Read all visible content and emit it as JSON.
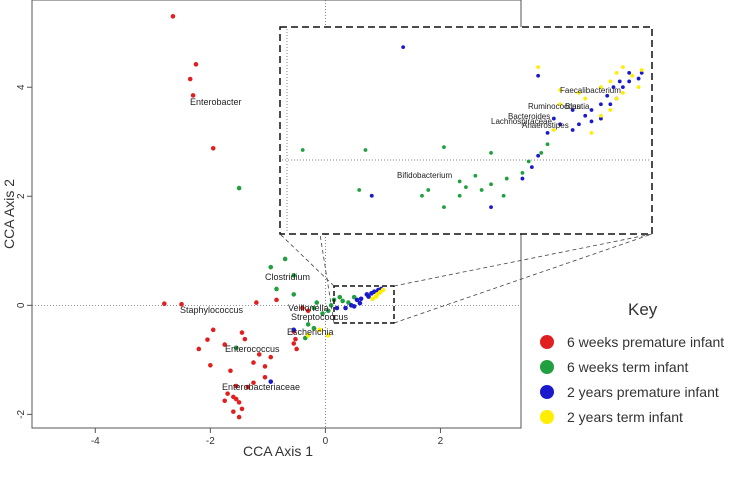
{
  "chart_data": {
    "type": "scatter",
    "xlabel": "CCA Axis 1",
    "ylabel": "CCA Axis 2",
    "xlim": [
      -5.1,
      3.4
    ],
    "ylim": [
      -2.25,
      5.6
    ],
    "x_ticks": [
      -4,
      -2,
      0,
      2
    ],
    "y_ticks": [
      -2,
      0,
      2,
      4
    ],
    "zero_lines": true,
    "legend_title": "Key",
    "legend_position": "right",
    "series": [
      {
        "name": "6 weeks premature infant",
        "color": "#e02020",
        "points": [
          [
            -2.65,
            5.3
          ],
          [
            -2.25,
            4.42
          ],
          [
            -2.35,
            4.15
          ],
          [
            -2.3,
            3.85
          ],
          [
            -1.95,
            2.88
          ],
          [
            -2.8,
            0.03
          ],
          [
            -2.5,
            0.02
          ],
          [
            -1.2,
            0.05
          ],
          [
            -0.85,
            0.1
          ],
          [
            -1.95,
            -0.45
          ],
          [
            -1.45,
            -0.5
          ],
          [
            -1.4,
            -0.62
          ],
          [
            -2.05,
            -0.63
          ],
          [
            -1.75,
            -0.72
          ],
          [
            -2.2,
            -0.8
          ],
          [
            -1.55,
            -0.78
          ],
          [
            -1.15,
            -0.9
          ],
          [
            -0.95,
            -0.95
          ],
          [
            -1.25,
            -1.05
          ],
          [
            -1.05,
            -1.12
          ],
          [
            -1.65,
            -1.2
          ],
          [
            -2.0,
            -1.1
          ],
          [
            -1.05,
            -1.32
          ],
          [
            -1.25,
            -1.42
          ],
          [
            -1.35,
            -1.5
          ],
          [
            -1.55,
            -1.48
          ],
          [
            -1.7,
            -1.62
          ],
          [
            -1.6,
            -1.68
          ],
          [
            -1.55,
            -1.72
          ],
          [
            -1.75,
            -1.75
          ],
          [
            -1.5,
            -1.78
          ],
          [
            -1.45,
            -1.9
          ],
          [
            -1.6,
            -1.95
          ],
          [
            -1.5,
            -2.05
          ],
          [
            -0.55,
            -0.48
          ],
          [
            -0.52,
            -0.62
          ],
          [
            -0.55,
            -0.7
          ],
          [
            -0.5,
            -0.8
          ],
          [
            -0.4,
            -0.05
          ],
          [
            -0.3,
            -0.1
          ]
        ]
      },
      {
        "name": "6 weeks term infant",
        "color": "#20a040",
        "points": [
          [
            -1.5,
            2.15
          ],
          [
            -0.95,
            0.7
          ],
          [
            -0.7,
            0.85
          ],
          [
            -0.55,
            0.55
          ],
          [
            -0.85,
            0.3
          ],
          [
            -0.55,
            0.2
          ],
          [
            -0.2,
            -0.05
          ],
          [
            -0.15,
            0.05
          ],
          [
            -0.05,
            -0.15
          ],
          [
            0.05,
            -0.1
          ],
          [
            0.1,
            0.0
          ],
          [
            0.15,
            0.1
          ],
          [
            0.25,
            0.15
          ],
          [
            0.3,
            0.08
          ],
          [
            0.4,
            0.05
          ],
          [
            0.5,
            0.15
          ],
          [
            -0.3,
            -0.35
          ],
          [
            -0.2,
            -0.42
          ],
          [
            -1.55,
            -0.78
          ],
          [
            -0.35,
            -0.6
          ]
        ]
      },
      {
        "name": "2 years premature infant",
        "color": "#1a1acc",
        "points": [
          [
            0.2,
            -0.05
          ],
          [
            0.35,
            -0.05
          ],
          [
            0.45,
            0.0
          ],
          [
            0.55,
            0.1
          ],
          [
            0.62,
            0.12
          ],
          [
            0.72,
            0.2
          ],
          [
            0.8,
            0.22
          ],
          [
            0.85,
            0.25
          ],
          [
            0.92,
            0.28
          ],
          [
            0.97,
            0.3
          ],
          [
            0.6,
            0.04
          ],
          [
            0.75,
            0.16
          ],
          [
            0.88,
            0.24
          ],
          [
            0.5,
            -0.02
          ],
          [
            -0.55,
            -0.45
          ],
          [
            -0.95,
            -1.4
          ]
        ]
      },
      {
        "name": "2 years term infant",
        "color": "#ffee00",
        "points": [
          [
            0.82,
            0.12
          ],
          [
            0.9,
            0.2
          ],
          [
            0.95,
            0.24
          ],
          [
            1.0,
            0.28
          ],
          [
            0.88,
            0.16
          ],
          [
            -0.3,
            -0.55
          ],
          [
            -0.1,
            -0.45
          ],
          [
            0.05,
            -0.55
          ]
        ]
      }
    ],
    "annotations": [
      "Enterobacter",
      "Clostridium",
      "Staphylococcus",
      "Veillonella",
      "Streptococcus",
      "Escherichia",
      "Enterococcus",
      "Enterobacteriaceae"
    ],
    "inset": {
      "xlim": [
        -0.05,
        1.1
      ],
      "ylim": [
        -0.22,
        0.48
      ],
      "points": [
        [
          "6 weeks term infant",
          [
            0.0,
            0.06
          ],
          [
            0.2,
            0.06
          ],
          [
            0.22,
            -0.1
          ],
          [
            0.18,
            -0.08
          ],
          [
            0.45,
            0.07
          ],
          [
            0.6,
            0.05
          ],
          [
            0.4,
            -0.08
          ],
          [
            0.38,
            -0.1
          ],
          [
            0.45,
            -0.14
          ],
          [
            0.5,
            -0.05
          ],
          [
            0.55,
            -0.03
          ],
          [
            0.6,
            -0.06
          ],
          [
            0.65,
            -0.04
          ],
          [
            0.7,
            -0.02
          ],
          [
            0.72,
            0.02
          ],
          [
            0.76,
            0.05
          ],
          [
            0.78,
            0.08
          ],
          [
            0.5,
            -0.1
          ],
          [
            0.52,
            -0.07
          ],
          [
            0.57,
            -0.08
          ],
          [
            0.64,
            -0.1
          ]
        ],
        [
          "2 years premature infant",
          [
            0.32,
            0.42
          ],
          [
            0.22,
            -0.1
          ],
          [
            0.6,
            -0.14
          ],
          [
            0.7,
            -0.04
          ],
          [
            0.73,
            0.0
          ],
          [
            0.75,
            0.04
          ],
          [
            0.78,
            0.12
          ],
          [
            0.8,
            0.17
          ],
          [
            0.82,
            0.15
          ],
          [
            0.86,
            0.13
          ],
          [
            0.9,
            0.18
          ],
          [
            0.92,
            0.2
          ],
          [
            0.95,
            0.22
          ],
          [
            0.97,
            0.25
          ],
          [
            0.99,
            0.28
          ],
          [
            1.01,
            0.3
          ],
          [
            1.04,
            0.33
          ],
          [
            0.86,
            0.2
          ],
          [
            0.88,
            0.15
          ],
          [
            0.92,
            0.16
          ],
          [
            0.95,
            0.17
          ],
          [
            0.98,
            0.22
          ],
          [
            1.0,
            0.24
          ],
          [
            1.02,
            0.28
          ],
          [
            1.04,
            0.3
          ],
          [
            1.07,
            0.31
          ],
          [
            1.08,
            0.33
          ],
          [
            0.75,
            0.32
          ]
        ],
        [
          "2 years term infant",
          [
            0.75,
            0.35
          ],
          [
            0.82,
            0.22
          ],
          [
            0.9,
            0.24
          ],
          [
            0.95,
            0.28
          ],
          [
            0.98,
            0.3
          ],
          [
            1.02,
            0.35
          ],
          [
            1.05,
            0.32
          ],
          [
            1.07,
            0.28
          ],
          [
            1.08,
            0.34
          ],
          [
            0.92,
            0.12
          ],
          [
            0.95,
            0.18
          ],
          [
            0.98,
            0.2
          ],
          [
            1.0,
            0.24
          ],
          [
            1.02,
            0.26
          ],
          [
            0.8,
            0.13
          ],
          [
            0.82,
            0.27
          ],
          [
            0.88,
            0.26
          ],
          [
            1.0,
            0.33
          ]
        ]
      ],
      "labels": [
        "Faecalibacterium",
        "Ruminococcus",
        "Blautia",
        "Bacteroides",
        "Lachnospiraceae",
        "Anaerostipes",
        "Bifidobacterium"
      ]
    }
  }
}
